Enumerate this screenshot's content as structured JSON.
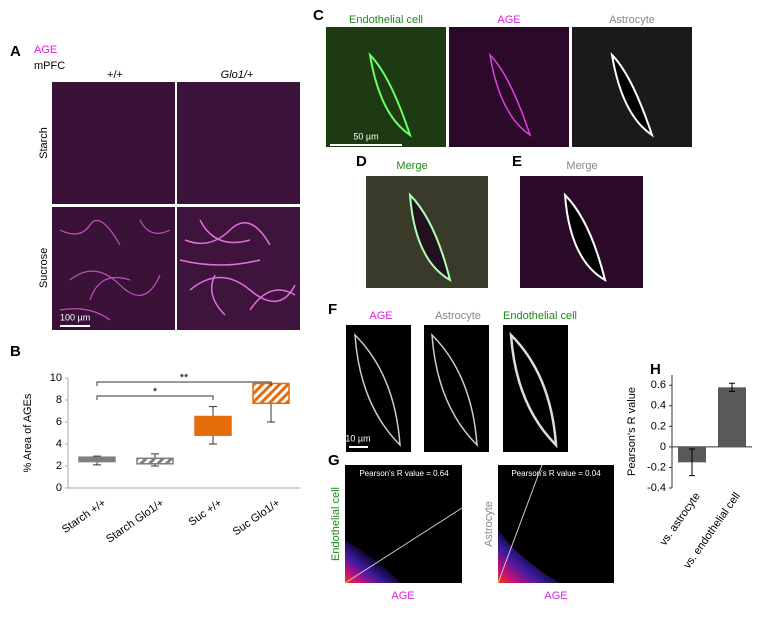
{
  "figure": {
    "A": {
      "label": "A",
      "stain": "AGE",
      "region": "mPFC",
      "col1": "+/+",
      "col2": "Glo1/+",
      "row1": "Starch",
      "row2": "Sucrose",
      "scale": "100 µm"
    },
    "C": {
      "label": "C",
      "ch1": "Endothelial cell",
      "ch2": "AGE",
      "ch3": "Astrocyte",
      "scale": "50 µm"
    },
    "D": {
      "label": "D",
      "title": "Merge"
    },
    "E": {
      "label": "E",
      "title": "Merge"
    },
    "F": {
      "label": "F",
      "ch1": "AGE",
      "ch2": "Astrocyte",
      "ch3": "Endothelial cell",
      "scale": "10 µm"
    },
    "G": {
      "label": "G",
      "plot1_y": "Endothelial cell",
      "plot1_x": "AGE",
      "plot1_r": "Pearson's R value = 0.64",
      "plot2_y": "Astrocyte",
      "plot2_x": "AGE",
      "plot2_r": "Pearson's R value = 0.04"
    }
  },
  "chart_data": [
    {
      "type": "box",
      "label": "B",
      "y_label": "% Area of AGEs",
      "categories": [
        "Starch +/+",
        "Starch Glo1/+",
        "Suc +/+",
        "Suc Glo1/+"
      ],
      "low": [
        2.1,
        2.0,
        4.0,
        6.0
      ],
      "q1": [
        2.4,
        2.2,
        4.8,
        7.7
      ],
      "q3": [
        2.8,
        2.7,
        6.5,
        9.5
      ],
      "high": [
        2.9,
        3.1,
        7.4,
        9.5
      ],
      "colors": [
        "#7f7f7f",
        "#7f7f7f",
        "#e46c0a",
        "#e46c0a"
      ],
      "hatched": [
        false,
        true,
        false,
        true
      ],
      "ylim": [
        0,
        10
      ],
      "yticks": [
        0,
        2,
        4,
        6,
        8,
        10
      ],
      "annotations": [
        {
          "label": "*",
          "from": 0,
          "to": 2
        },
        {
          "label": "**",
          "from": 0,
          "to": 3
        }
      ]
    },
    {
      "type": "bar",
      "label": "H",
      "y_label": "Pearson's R value",
      "categories": [
        "vs. astrocyte",
        "vs. endothelial cell"
      ],
      "values": [
        -0.15,
        0.58
      ],
      "errors": [
        0.13,
        0.04
      ],
      "color": "#595959",
      "ylim": [
        -0.4,
        0.7
      ],
      "yticks": [
        -0.4,
        -0.2,
        0,
        0.2,
        0.4,
        0.6
      ]
    }
  ]
}
